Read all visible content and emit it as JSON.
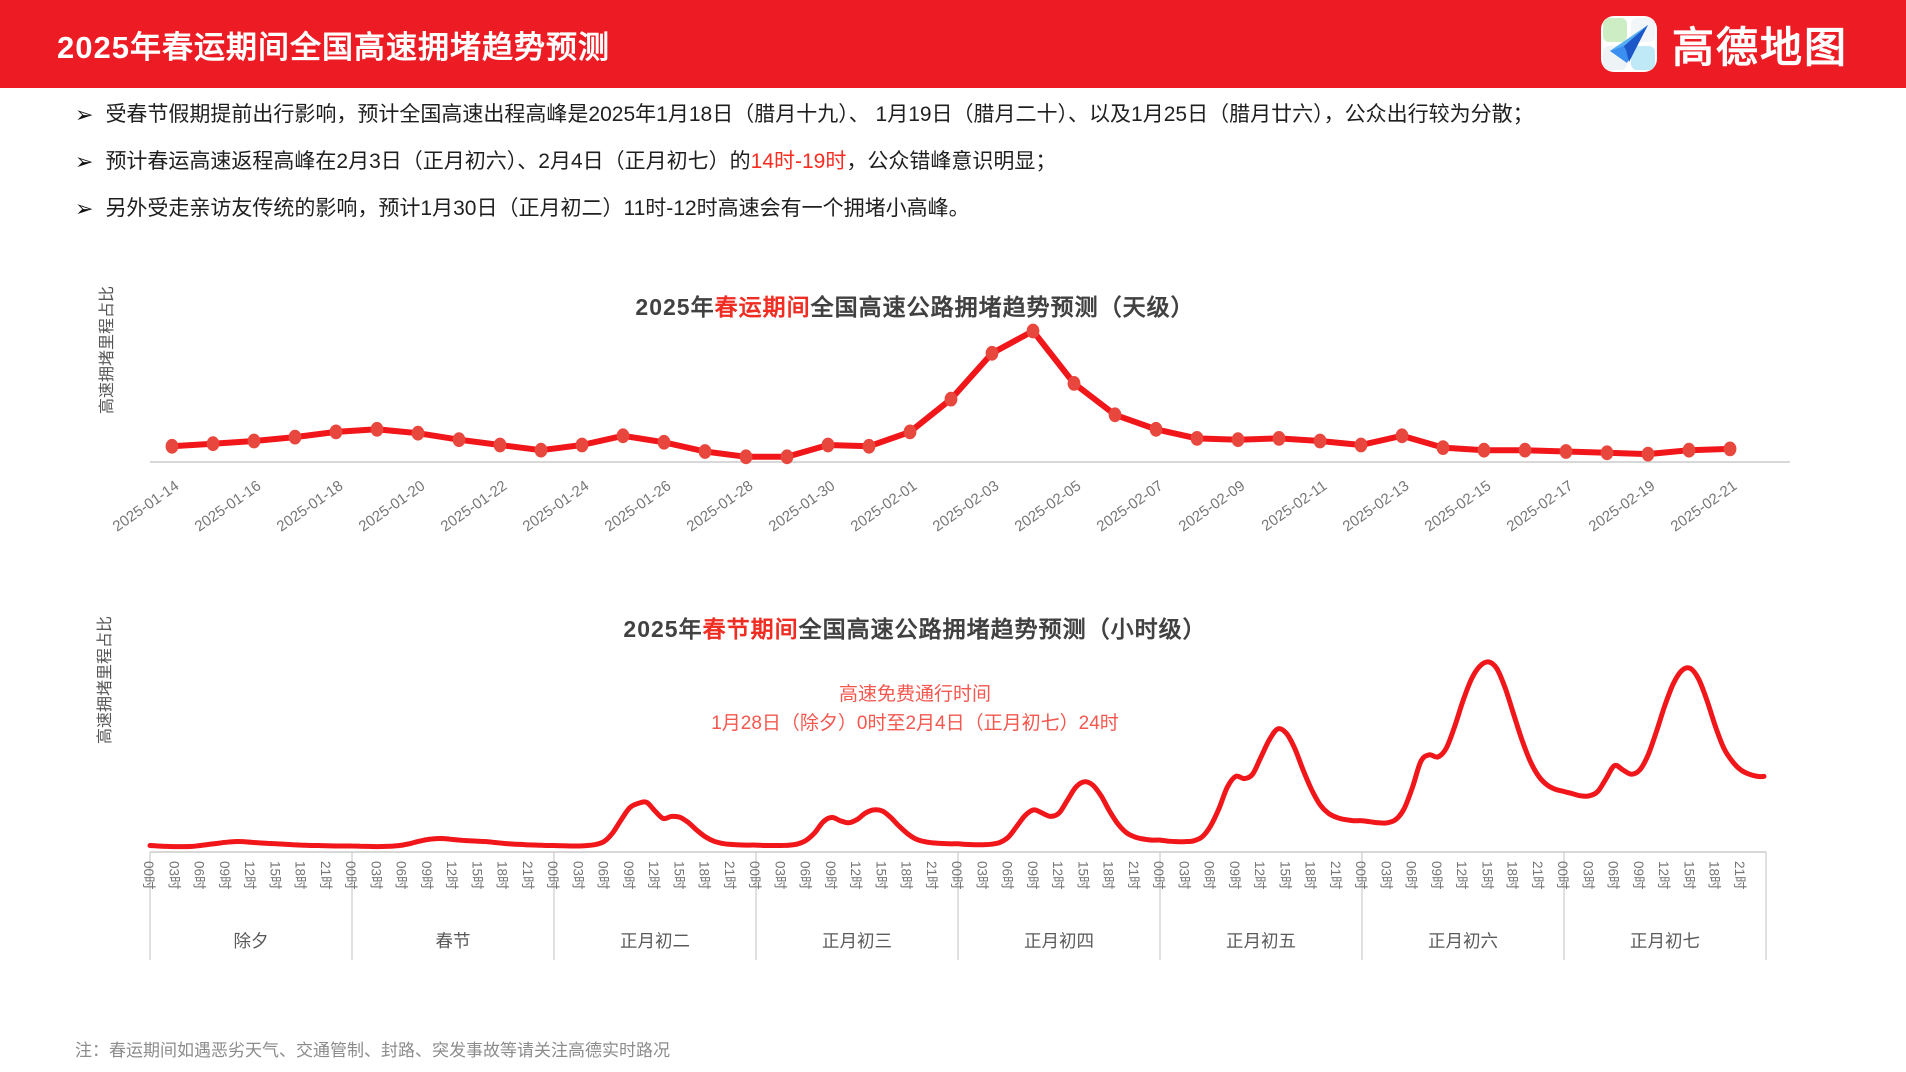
{
  "header": {
    "title": "2025年春运期间全国高速拥堵趋势预测",
    "brand": "高德地图"
  },
  "bullets": [
    {
      "segments": [
        {
          "t": "受春节假期提前出行影响，预计全国高速出程高峰是2025年1月18日（腊月十九）、 1月19日（腊月二十）、以及1月25日（腊月廿六），公众出行较为分散；",
          "red": false
        }
      ]
    },
    {
      "segments": [
        {
          "t": "预计春运高速返程高峰在2月3日（正月初六）、2月4日（正月初七）的",
          "red": false
        },
        {
          "t": "14时-19时",
          "red": true
        },
        {
          "t": "，公众错峰意识明显；",
          "red": false
        }
      ]
    },
    {
      "segments": [
        {
          "t": "另外受走亲访友传统的影响，预计1月30日（正月初二）11时-12时高速会有一个拥堵小高峰。",
          "red": false
        }
      ]
    }
  ],
  "footer_note": "注：春运期间如遇恶劣天气、交通管制、封路、突发事故等请关注高德实时路况",
  "colors": {
    "header_bg": "#ed1b23",
    "accent_red": "#f02d23",
    "annotation_red": "#f4574e",
    "line_red": "#f0161a",
    "dot_red": "#e8473e",
    "axis_gray": "#cccccc",
    "tick_gray": "#767676",
    "day_gray": "#5a5a5a",
    "ylabel_gray": "#555555"
  },
  "chart_data": [
    {
      "type": "line",
      "title_segments": [
        {
          "t": "2025年",
          "red": false
        },
        {
          "t": "春运期间",
          "red": true
        },
        {
          "t": "全国高速公路拥堵趋势预测（天级）",
          "red": false
        }
      ],
      "ylabel": "高速拥堵里程占比",
      "legend": "none",
      "grid": false,
      "ylim": [
        0,
        110
      ],
      "xtick_every": 2,
      "x": [
        "2025-01-14",
        "2025-01-15",
        "2025-01-16",
        "2025-01-17",
        "2025-01-18",
        "2025-01-19",
        "2025-01-20",
        "2025-01-21",
        "2025-01-22",
        "2025-01-23",
        "2025-01-24",
        "2025-01-25",
        "2025-01-26",
        "2025-01-27",
        "2025-01-28",
        "2025-01-29",
        "2025-01-30",
        "2025-01-31",
        "2025-02-01",
        "2025-02-02",
        "2025-02-03",
        "2025-02-04",
        "2025-02-05",
        "2025-02-06",
        "2025-02-07",
        "2025-02-08",
        "2025-02-09",
        "2025-02-10",
        "2025-02-11",
        "2025-02-12",
        "2025-02-13",
        "2025-02-14",
        "2025-02-15",
        "2025-02-16",
        "2025-02-17",
        "2025-02-18",
        "2025-02-19",
        "2025-02-20",
        "2025-02-21"
      ],
      "values": [
        12,
        14,
        16,
        19,
        23,
        25,
        22,
        17,
        13,
        9,
        13,
        20,
        15,
        8,
        4,
        4,
        13,
        12,
        23,
        48,
        83,
        100,
        60,
        36,
        25,
        18,
        17,
        18,
        16,
        13,
        20,
        11,
        9,
        9,
        8,
        7,
        6,
        9,
        10
      ]
    },
    {
      "type": "line",
      "smooth": true,
      "title_segments": [
        {
          "t": "2025年",
          "red": false
        },
        {
          "t": "春节期间",
          "red": true
        },
        {
          "t": "全国高速公路拥堵趋势预测（小时级）",
          "red": false
        }
      ],
      "ylabel": "高速拥堵里程占比",
      "annotation": [
        "高速免费通行时间",
        "1月28日（除夕）0时至2月4日（正月初七）24时"
      ],
      "hour_ticks": [
        "00时",
        "03时",
        "06时",
        "09时",
        "12时",
        "15时",
        "18时",
        "21时"
      ],
      "ylim": [
        0,
        100
      ],
      "days": [
        {
          "label": "除夕",
          "hourly": [
            3,
            2.8,
            2.6,
            2.5,
            2.5,
            2.6,
            3,
            3.5,
            4,
            4.5,
            4.8,
            4.8,
            4.5,
            4.2,
            4,
            3.8,
            3.6,
            3.4,
            3.2,
            3,
            3,
            2.9,
            2.8,
            2.8
          ]
        },
        {
          "label": "春节",
          "hourly": [
            2.8,
            2.7,
            2.6,
            2.5,
            2.6,
            2.8,
            3.2,
            4,
            5,
            5.8,
            6.2,
            6.2,
            5.8,
            5.4,
            5.2,
            5,
            4.8,
            4.4,
            4,
            3.7,
            3.5,
            3.3,
            3.2,
            3
          ]
        },
        {
          "label": "正月初二",
          "hourly": [
            3,
            2.9,
            2.8,
            2.8,
            3,
            3.5,
            5,
            9,
            15,
            20.5,
            22.5,
            23,
            19,
            15.5,
            16.5,
            16,
            13.5,
            10,
            7,
            5,
            4,
            3.5,
            3.3,
            3.2
          ]
        },
        {
          "label": "正月初三",
          "hourly": [
            3.2,
            3,
            3,
            3,
            3.2,
            3.8,
            5.5,
            9,
            14,
            16,
            14.5,
            13.5,
            15,
            18,
            19.5,
            19,
            16,
            12,
            8.5,
            6,
            4.8,
            4.2,
            4,
            3.8
          ]
        },
        {
          "label": "正月初四",
          "hourly": [
            3.8,
            3.5,
            3.4,
            3.4,
            3.6,
            4.5,
            7,
            12,
            17,
            19.5,
            18,
            16.5,
            18,
            24,
            30,
            32.5,
            31,
            26,
            19,
            13,
            9,
            7,
            6,
            5.5
          ]
        },
        {
          "label": "正月初五",
          "hourly": [
            5.5,
            5,
            4.8,
            4.8,
            5.2,
            7,
            12,
            20,
            30,
            35,
            34,
            36,
            44,
            52,
            57,
            55,
            48,
            38,
            29,
            22,
            18,
            16,
            15,
            14.5
          ]
        },
        {
          "label": "正月初六",
          "hourly": [
            14.5,
            14,
            13.5,
            13.5,
            15,
            20,
            30,
            42,
            45,
            44,
            48,
            58,
            70,
            80,
            86,
            88,
            85,
            76,
            64,
            52,
            42,
            35,
            31,
            29
          ]
        },
        {
          "label": "正月初七",
          "hourly": [
            28,
            27,
            26,
            26,
            28,
            34,
            40,
            38,
            36,
            38,
            45,
            56,
            68,
            78,
            84,
            85,
            80,
            70,
            58,
            48,
            42,
            38,
            36,
            35
          ]
        }
      ]
    }
  ]
}
